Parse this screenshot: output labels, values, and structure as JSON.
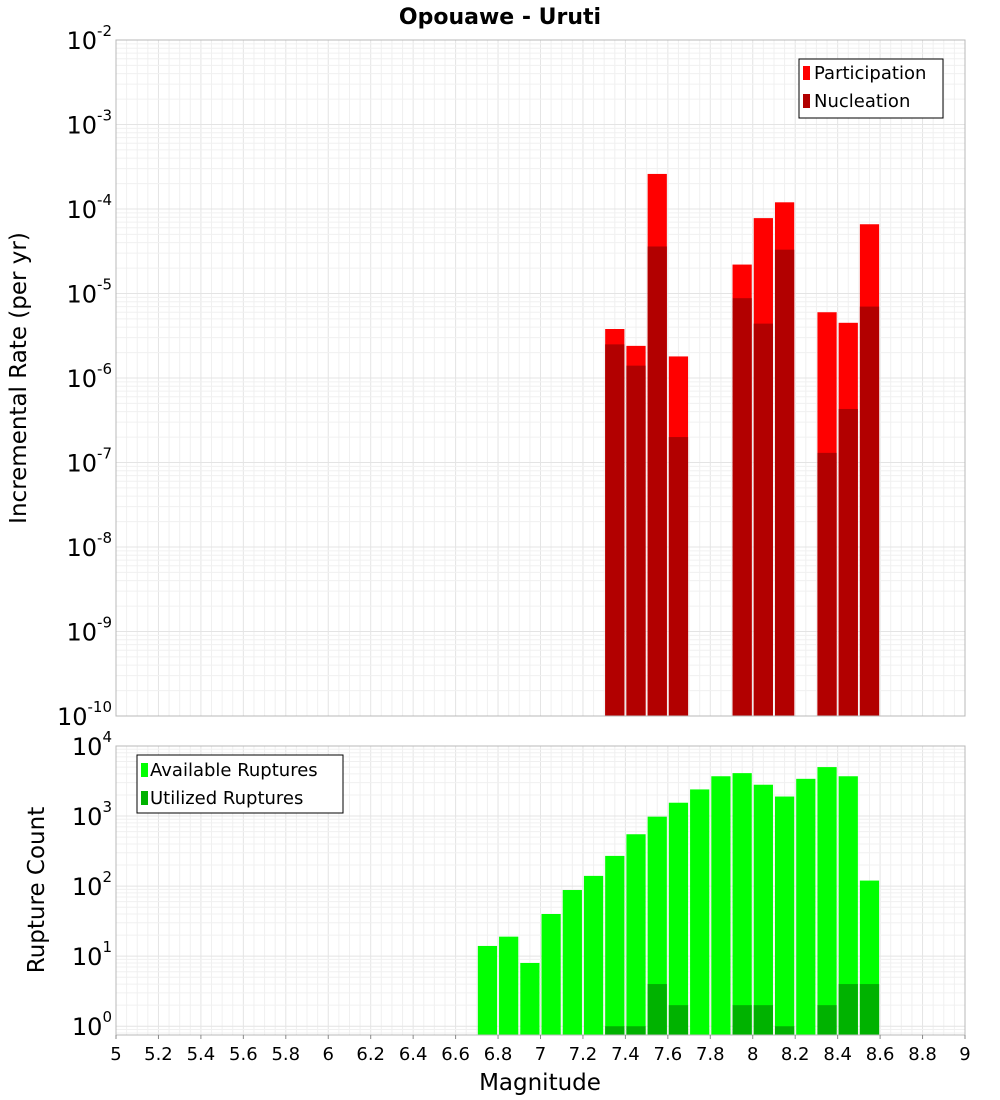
{
  "chart_data": [
    {
      "type": "bar",
      "title": "Opouawe - Uruti",
      "ylabel": "Incremental Rate (per yr)",
      "xlabel": "",
      "xlim": [
        5,
        9
      ],
      "ylim": [
        1e-10,
        0.01
      ],
      "yscale": "log",
      "bar_width": 0.1,
      "grid": true,
      "legend_position": "top-right",
      "x": [
        7.35,
        7.45,
        7.55,
        7.65,
        7.95,
        8.05,
        8.15,
        8.35,
        8.45,
        8.55
      ],
      "series": [
        {
          "name": "Participation",
          "color": "#ff0000",
          "values": [
            3.8e-06,
            2.4e-06,
            0.00026,
            1.8e-06,
            2.2e-05,
            7.8e-05,
            0.00012,
            6e-06,
            4.5e-06,
            6.6e-05
          ]
        },
        {
          "name": "Nucleation",
          "color": "#b20000",
          "values": [
            2.5e-06,
            1.4e-06,
            3.6e-05,
            2e-07,
            8.8e-06,
            4.4e-06,
            3.3e-05,
            1.3e-07,
            4.3e-07,
            7e-06
          ]
        }
      ]
    },
    {
      "type": "bar",
      "title": "",
      "ylabel": "Rupture Count",
      "xlabel": "Magnitude",
      "xlim": [
        5,
        9
      ],
      "ylim": [
        0.75,
        10000
      ],
      "yscale": "log",
      "bar_width": 0.1,
      "grid": true,
      "legend_position": "top-left",
      "x_ticks": [
        "5",
        "5.2",
        "5.4",
        "5.6",
        "5.8",
        "6",
        "6.2",
        "6.4",
        "6.6",
        "6.8",
        "7",
        "7.2",
        "7.4",
        "7.6",
        "7.8",
        "8",
        "8.2",
        "8.4",
        "8.6",
        "8.8",
        "9"
      ],
      "x": [
        6.75,
        6.85,
        6.95,
        7.05,
        7.15,
        7.25,
        7.35,
        7.45,
        7.55,
        7.65,
        7.75,
        7.85,
        7.95,
        8.05,
        8.15,
        8.25,
        8.35,
        8.45,
        8.55
      ],
      "series": [
        {
          "name": "Available Ruptures",
          "color": "#00ff00",
          "values": [
            14,
            19,
            8,
            40,
            88,
            140,
            270,
            550,
            980,
            1550,
            2400,
            3700,
            4100,
            2800,
            1900,
            3400,
            5000,
            3700,
            120
          ]
        },
        {
          "name": "Utilized Ruptures",
          "color": "#00b200",
          "values": [
            0,
            0,
            0,
            0,
            0,
            0,
            1,
            1,
            4,
            2,
            0,
            0,
            2,
            2,
            1,
            0,
            2,
            4,
            4
          ]
        }
      ]
    }
  ]
}
